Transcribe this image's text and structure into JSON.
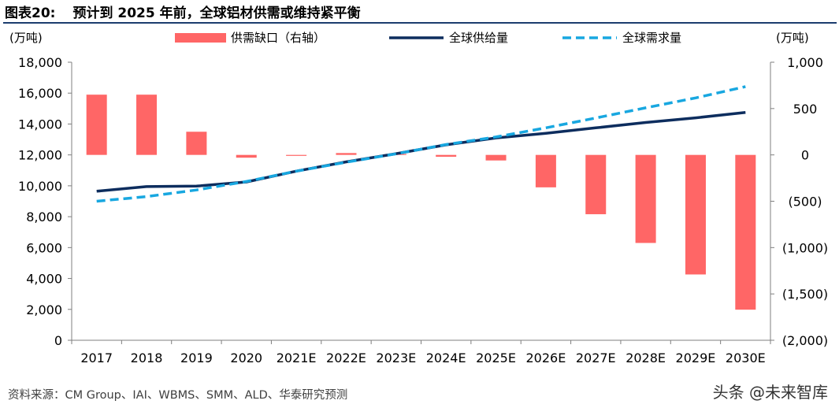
{
  "header": {
    "figure_number": "图表20:",
    "title": "预计到 2025 年前，全球铝材供需或维持紧平衡"
  },
  "footer": {
    "source": "资料来源：CM Group、IAI、WBMS、SMM、ALD、华泰研究预测",
    "watermark": "头条 @未来智库"
  },
  "colors": {
    "gap_bar": "#ff6666",
    "supply_line": "#0d2d5e",
    "demand_line": "#18a7e0",
    "axis": "#7f7f7f"
  },
  "chart_data": {
    "type": "bar+line",
    "categories": [
      "2017",
      "2018",
      "2019",
      "2020",
      "2021E",
      "2022E",
      "2023E",
      "2024E",
      "2025E",
      "2026E",
      "2027E",
      "2028E",
      "2029E",
      "2030E"
    ],
    "left_axis": {
      "unit_label": "(万吨)",
      "min": 0,
      "max": 18000,
      "step": 2000,
      "ticks": [
        "0",
        "2,000",
        "4,000",
        "6,000",
        "8,000",
        "10,000",
        "12,000",
        "14,000",
        "16,000",
        "18,000"
      ]
    },
    "right_axis": {
      "unit_label": "(万吨)",
      "min": -2000,
      "max": 1000,
      "step": 500,
      "ticks": [
        "(2,000)",
        "(1,500)",
        "(1,000)",
        "(500)",
        "0",
        "500",
        "1,000"
      ]
    },
    "series": [
      {
        "name": "供需缺口（右轴）",
        "type": "bar",
        "axis": "right",
        "values": [
          650,
          650,
          250,
          -30,
          -5,
          20,
          10,
          -20,
          -60,
          -350,
          -640,
          -950,
          -1290,
          -1670
        ]
      },
      {
        "name": "全球供给量",
        "type": "line",
        "axis": "left",
        "style": "solid",
        "values": [
          9650,
          9950,
          9980,
          10250,
          10950,
          11550,
          12080,
          12650,
          13100,
          13400,
          13750,
          14100,
          14400,
          14750
        ]
      },
      {
        "name": "全球需求量",
        "type": "line",
        "axis": "left",
        "style": "dashed",
        "values": [
          9000,
          9300,
          9730,
          10280,
          10950,
          11530,
          12070,
          12670,
          13160,
          13750,
          14390,
          15050,
          15690,
          16420
        ]
      }
    ],
    "legend_position": "top",
    "grid": false
  }
}
